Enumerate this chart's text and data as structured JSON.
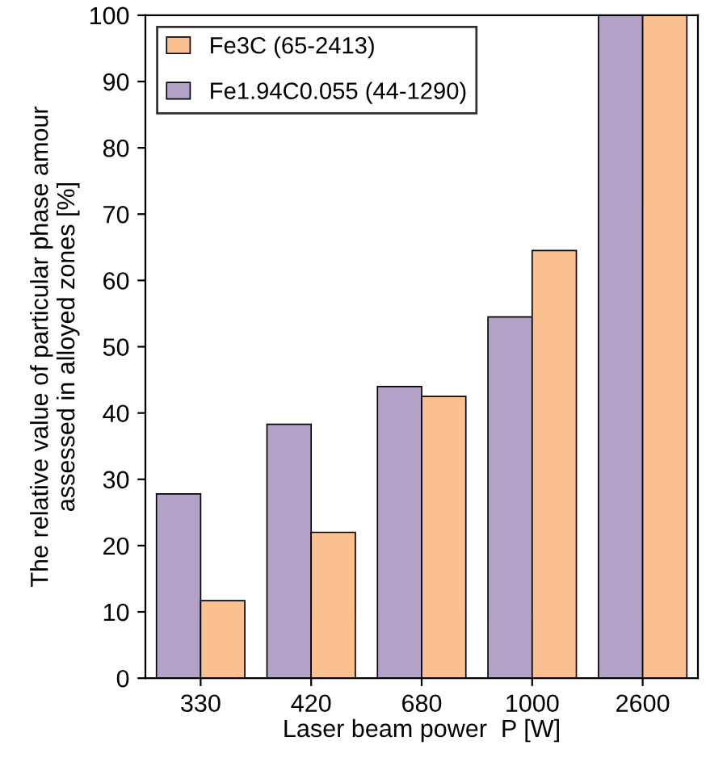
{
  "chart_data": {
    "type": "bar",
    "xlabel": "Laser beam power  P [W]",
    "ylabel": "The relative value of particular phase amour\nassessed in alloyed zones [%]",
    "categories": [
      "330",
      "420",
      "680",
      "1000",
      "2600"
    ],
    "series": [
      {
        "name": "Fe1.94C0.055 (44-1290)",
        "color": "#b3a2c7",
        "values": [
          27.8,
          38.3,
          44,
          54.5,
          100
        ]
      },
      {
        "name": "Fe3C (65-2413)",
        "color": "#fac090",
        "values": [
          11.7,
          22,
          42.5,
          64.5,
          100
        ]
      }
    ],
    "ylim": [
      0,
      100
    ],
    "yticks": [
      0,
      10,
      20,
      30,
      40,
      50,
      60,
      70,
      80,
      90,
      100
    ],
    "grid": false,
    "legend": "top left"
  }
}
